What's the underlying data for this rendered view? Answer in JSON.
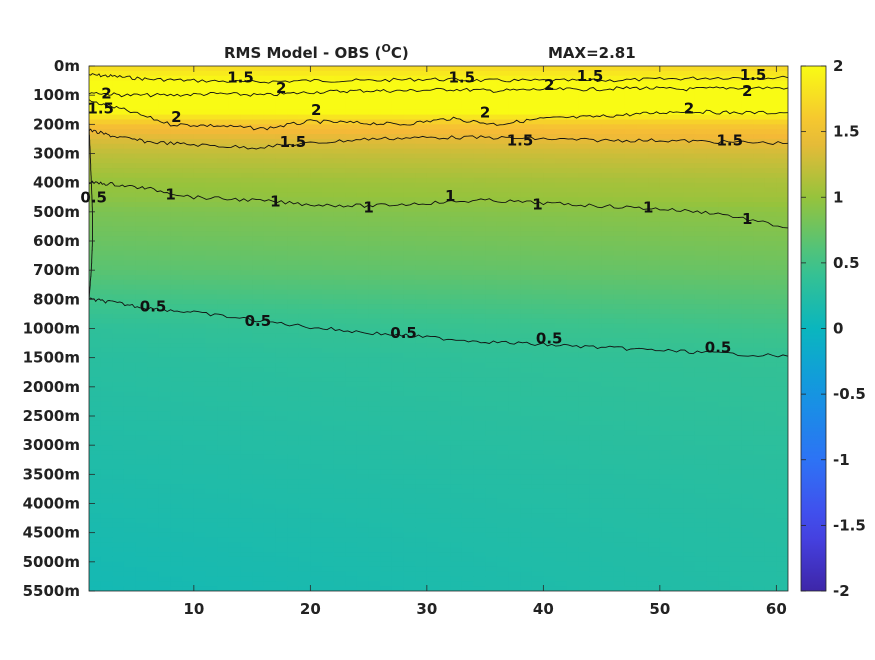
{
  "chart_data": {
    "type": "heatmap",
    "title": "RMS Model - OBS (°C)",
    "title_main": "RMS Model - OBS (",
    "title_unit_sup": "O",
    "title_unit_tail": "C)",
    "max_label": "MAX=2.81",
    "x_ticks": [
      10,
      20,
      30,
      40,
      50,
      60
    ],
    "x_range": [
      1,
      61
    ],
    "y_ticks": [
      "0m",
      "100m",
      "200m",
      "300m",
      "400m",
      "500m",
      "600m",
      "700m",
      "800m",
      "1000m",
      "1500m",
      "2000m",
      "2500m",
      "3000m",
      "3500m",
      "4000m",
      "4500m",
      "5000m",
      "5500m"
    ],
    "colorbar": {
      "range": [
        -2,
        2
      ],
      "ticks": [
        2,
        1.5,
        1,
        0.5,
        0,
        -0.5,
        -1,
        -1.5,
        -2
      ],
      "tick_labels": [
        "2",
        "1.5",
        "1",
        "0.5",
        "0",
        "-0.5",
        "-1",
        "-1.5",
        "-2"
      ],
      "colormap": "parula"
    },
    "profile": {
      "depth_index": [
        0,
        0.5,
        1,
        1.5,
        2,
        2.5,
        3,
        3.5,
        4,
        4.5,
        5,
        6,
        7,
        8,
        9,
        10,
        12,
        14,
        16,
        18
      ],
      "rms_start": [
        1.75,
        2.0,
        2.15,
        2.05,
        1.55,
        1.35,
        1.2,
        1.1,
        1.0,
        0.95,
        0.85,
        0.75,
        0.65,
        0.5,
        0.35,
        0.3,
        0.25,
        0.2,
        0.15,
        0.1
      ],
      "rms_end": [
        1.7,
        1.95,
        2.1,
        2.1,
        1.6,
        1.45,
        1.3,
        1.2,
        1.1,
        1.05,
        0.95,
        0.85,
        0.75,
        0.62,
        0.5,
        0.4,
        0.35,
        0.3,
        0.27,
        0.25
      ]
    },
    "contours": [
      {
        "level": "1.5",
        "x": [
          1,
          3,
          6,
          10,
          15,
          20,
          25,
          30,
          35,
          40,
          45,
          50,
          55,
          61
        ],
        "depth_index": [
          0.3,
          0.35,
          0.45,
          0.5,
          0.55,
          0.5,
          0.5,
          0.45,
          0.5,
          0.5,
          0.5,
          0.45,
          0.4,
          0.4
        ]
      },
      {
        "level": "2",
        "x": [
          1,
          4,
          8,
          12,
          16,
          20,
          24,
          28,
          32,
          36,
          40,
          44,
          48,
          52,
          56,
          61
        ],
        "depth_index": [
          0.9,
          1.0,
          1.0,
          0.95,
          1.0,
          0.9,
          0.85,
          0.85,
          0.8,
          0.85,
          0.8,
          0.8,
          0.75,
          0.8,
          0.75,
          0.75
        ]
      },
      {
        "level": "2",
        "x": [
          1,
          4,
          8,
          12,
          16,
          20,
          24,
          28,
          32,
          36,
          40,
          44,
          48,
          52,
          56,
          61
        ],
        "depth_index": [
          1.2,
          1.5,
          2.0,
          2.05,
          2.15,
          1.9,
          1.95,
          2.0,
          1.8,
          2.0,
          1.8,
          1.75,
          1.65,
          1.55,
          1.6,
          1.6
        ]
      },
      {
        "level": "1.5",
        "x": [
          1,
          3,
          6,
          10,
          15,
          20,
          25,
          30,
          35,
          40,
          45,
          50,
          55,
          61
        ],
        "depth_index": [
          2.2,
          2.4,
          2.6,
          2.7,
          2.8,
          2.65,
          2.5,
          2.45,
          2.45,
          2.5,
          2.55,
          2.55,
          2.6,
          2.65
        ]
      },
      {
        "level": "1",
        "x": [
          1,
          3,
          6,
          10,
          15,
          20,
          25,
          30,
          35,
          40,
          45,
          50,
          55,
          61
        ],
        "depth_index": [
          4.0,
          4.05,
          4.2,
          4.5,
          4.6,
          4.75,
          4.8,
          4.7,
          4.6,
          4.7,
          4.8,
          4.9,
          5.05,
          5.55
        ]
      },
      {
        "level": "0.5",
        "x": [
          1,
          3,
          6,
          10,
          15,
          20,
          25,
          30,
          35,
          40,
          45,
          50,
          55,
          61
        ],
        "depth_index": [
          8.0,
          8.1,
          8.3,
          8.45,
          8.7,
          8.95,
          9.15,
          9.3,
          9.45,
          9.55,
          9.65,
          9.75,
          9.85,
          9.95
        ]
      },
      {
        "level": "0.5",
        "x": [
          1,
          1.1,
          1.2,
          1.3,
          1.3,
          1.2,
          1.1,
          1.0
        ],
        "depth_index": [
          2.0,
          3.0,
          4.0,
          5.0,
          6.0,
          7.0,
          7.5,
          8.0
        ]
      }
    ],
    "contour_labels": [
      {
        "text": "1.5",
        "x": 14,
        "depth_index": 0.4
      },
      {
        "text": "1.5",
        "x": 33,
        "depth_index": 0.4
      },
      {
        "text": "1.5",
        "x": 44,
        "depth_index": 0.35
      },
      {
        "text": "1.5",
        "x": 58,
        "depth_index": 0.3
      },
      {
        "text": "2",
        "x": 17.5,
        "depth_index": 0.75
      },
      {
        "text": "2",
        "x": 40.5,
        "depth_index": 0.65
      },
      {
        "text": "2",
        "x": 57.5,
        "depth_index": 0.85
      },
      {
        "text": "2",
        "x": 2.5,
        "depth_index": 0.95
      },
      {
        "text": "2",
        "x": 8.5,
        "depth_index": 1.75
      },
      {
        "text": "2",
        "x": 20.5,
        "depth_index": 1.5
      },
      {
        "text": "2",
        "x": 35,
        "depth_index": 1.6
      },
      {
        "text": "2",
        "x": 52.5,
        "depth_index": 1.45
      },
      {
        "text": "1.5",
        "x": 2.0,
        "depth_index": 1.45
      },
      {
        "text": "1.5",
        "x": 18.5,
        "depth_index": 2.6
      },
      {
        "text": "1.5",
        "x": 38,
        "depth_index": 2.55
      },
      {
        "text": "1.5",
        "x": 56,
        "depth_index": 2.55
      },
      {
        "text": "1",
        "x": 8,
        "depth_index": 4.4
      },
      {
        "text": "1",
        "x": 17,
        "depth_index": 4.65
      },
      {
        "text": "1",
        "x": 25,
        "depth_index": 4.85
      },
      {
        "text": "1",
        "x": 32,
        "depth_index": 4.45
      },
      {
        "text": "1",
        "x": 39.5,
        "depth_index": 4.75
      },
      {
        "text": "1",
        "x": 49,
        "depth_index": 4.85
      },
      {
        "text": "1",
        "x": 57.5,
        "depth_index": 5.25
      },
      {
        "text": "0.5",
        "x": 6.5,
        "depth_index": 8.25
      },
      {
        "text": "0.5",
        "x": 15.5,
        "depth_index": 8.75
      },
      {
        "text": "0.5",
        "x": 28,
        "depth_index": 9.15
      },
      {
        "text": "0.5",
        "x": 40.5,
        "depth_index": 9.35
      },
      {
        "text": "0.5",
        "x": 55,
        "depth_index": 9.65
      },
      {
        "text": "0.5",
        "x": 1.4,
        "depth_index": 4.5
      }
    ]
  }
}
